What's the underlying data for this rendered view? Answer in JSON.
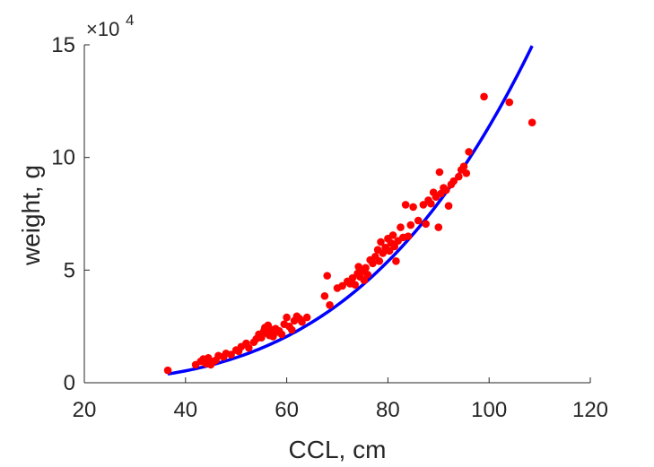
{
  "chart_data": {
    "type": "scatter",
    "xlabel": "CCL, cm",
    "ylabel": "weight, g",
    "xlim": [
      20,
      120
    ],
    "ylim": [
      0,
      150000
    ],
    "xticks": [
      20,
      40,
      60,
      80,
      100,
      120
    ],
    "yticks": [
      0,
      50000,
      100000,
      150000
    ],
    "ytick_labels": [
      "0",
      "5",
      "10",
      "15"
    ],
    "xtick_labels": [
      "20",
      "40",
      "60",
      "80",
      "100",
      "120"
    ],
    "y_exponent": {
      "base": "×10",
      "power": "4"
    },
    "grid": false,
    "legend": "none",
    "colors": {
      "points": "#ff0000",
      "fit": "#0000ff",
      "axis": "#262626"
    },
    "series": [
      {
        "kind": "points",
        "points": [
          [
            36.5,
            5500
          ],
          [
            42,
            8000
          ],
          [
            43,
            9500
          ],
          [
            43.5,
            10500
          ],
          [
            44,
            8500
          ],
          [
            44.5,
            11000
          ],
          [
            45,
            8000
          ],
          [
            45.5,
            9500
          ],
          [
            46,
            10000
          ],
          [
            46.5,
            12000
          ],
          [
            47.5,
            11500
          ],
          [
            48,
            13000
          ],
          [
            49,
            12500
          ],
          [
            50,
            14500
          ],
          [
            50.5,
            14000
          ],
          [
            51,
            16000
          ],
          [
            52,
            17500
          ],
          [
            52.5,
            15500
          ],
          [
            53.5,
            18000
          ],
          [
            54,
            19500
          ],
          [
            54.5,
            21500
          ],
          [
            55,
            20000
          ],
          [
            55.5,
            23000
          ],
          [
            55.7,
            24500
          ],
          [
            56,
            22000
          ],
          [
            56.3,
            25500
          ],
          [
            56.6,
            21000
          ],
          [
            57,
            23500
          ],
          [
            57.3,
            20500
          ],
          [
            57.8,
            24000
          ],
          [
            58,
            22500
          ],
          [
            58.5,
            23000
          ],
          [
            59,
            21500
          ],
          [
            59.5,
            26000
          ],
          [
            60,
            29000
          ],
          [
            60.5,
            25000
          ],
          [
            61,
            23500
          ],
          [
            61.5,
            27500
          ],
          [
            62,
            29500
          ],
          [
            62.5,
            28500
          ],
          [
            63,
            27000
          ],
          [
            64,
            29000
          ],
          [
            67.5,
            38500
          ],
          [
            68,
            47500
          ],
          [
            68.5,
            34500
          ],
          [
            70,
            42000
          ],
          [
            71,
            43000
          ],
          [
            72,
            45000
          ],
          [
            72.5,
            44000
          ],
          [
            73,
            46500
          ],
          [
            73.5,
            43500
          ],
          [
            74,
            48500
          ],
          [
            74.2,
            51500
          ],
          [
            74.5,
            47000
          ],
          [
            75,
            49500
          ],
          [
            75.3,
            45500
          ],
          [
            75.6,
            51000
          ],
          [
            76,
            48000
          ],
          [
            76.5,
            54500
          ],
          [
            77,
            53000
          ],
          [
            77.5,
            56000
          ],
          [
            78,
            59000
          ],
          [
            78.3,
            54000
          ],
          [
            78.6,
            62500
          ],
          [
            79,
            57500
          ],
          [
            79.5,
            60000
          ],
          [
            80,
            64000
          ],
          [
            80.3,
            58500
          ],
          [
            80.6,
            62000
          ],
          [
            81,
            65500
          ],
          [
            81.3,
            60500
          ],
          [
            81.6,
            54000
          ],
          [
            82,
            63000
          ],
          [
            82.5,
            69000
          ],
          [
            83,
            64500
          ],
          [
            83.5,
            79000
          ],
          [
            84,
            65000
          ],
          [
            84.5,
            70000
          ],
          [
            85,
            78000
          ],
          [
            86,
            72000
          ],
          [
            87,
            79000
          ],
          [
            87.5,
            70500
          ],
          [
            88,
            81000
          ],
          [
            88.5,
            79500
          ],
          [
            89,
            84500
          ],
          [
            89.5,
            82500
          ],
          [
            90,
            69000
          ],
          [
            90.2,
            93500
          ],
          [
            90.5,
            84000
          ],
          [
            91,
            86500
          ],
          [
            91.5,
            85500
          ],
          [
            92,
            78500
          ],
          [
            92.5,
            88000
          ],
          [
            93,
            89500
          ],
          [
            94,
            91500
          ],
          [
            94.5,
            94500
          ],
          [
            95,
            96000
          ],
          [
            95.5,
            93000
          ],
          [
            96,
            102500
          ],
          [
            99,
            127000
          ],
          [
            104,
            124500
          ],
          [
            108.5,
            115500
          ]
        ]
      },
      {
        "kind": "fit-line",
        "model": "power",
        "coefficient": 0.0227,
        "exponent": 3.35,
        "x_range": [
          36.5,
          108.5
        ]
      }
    ]
  }
}
